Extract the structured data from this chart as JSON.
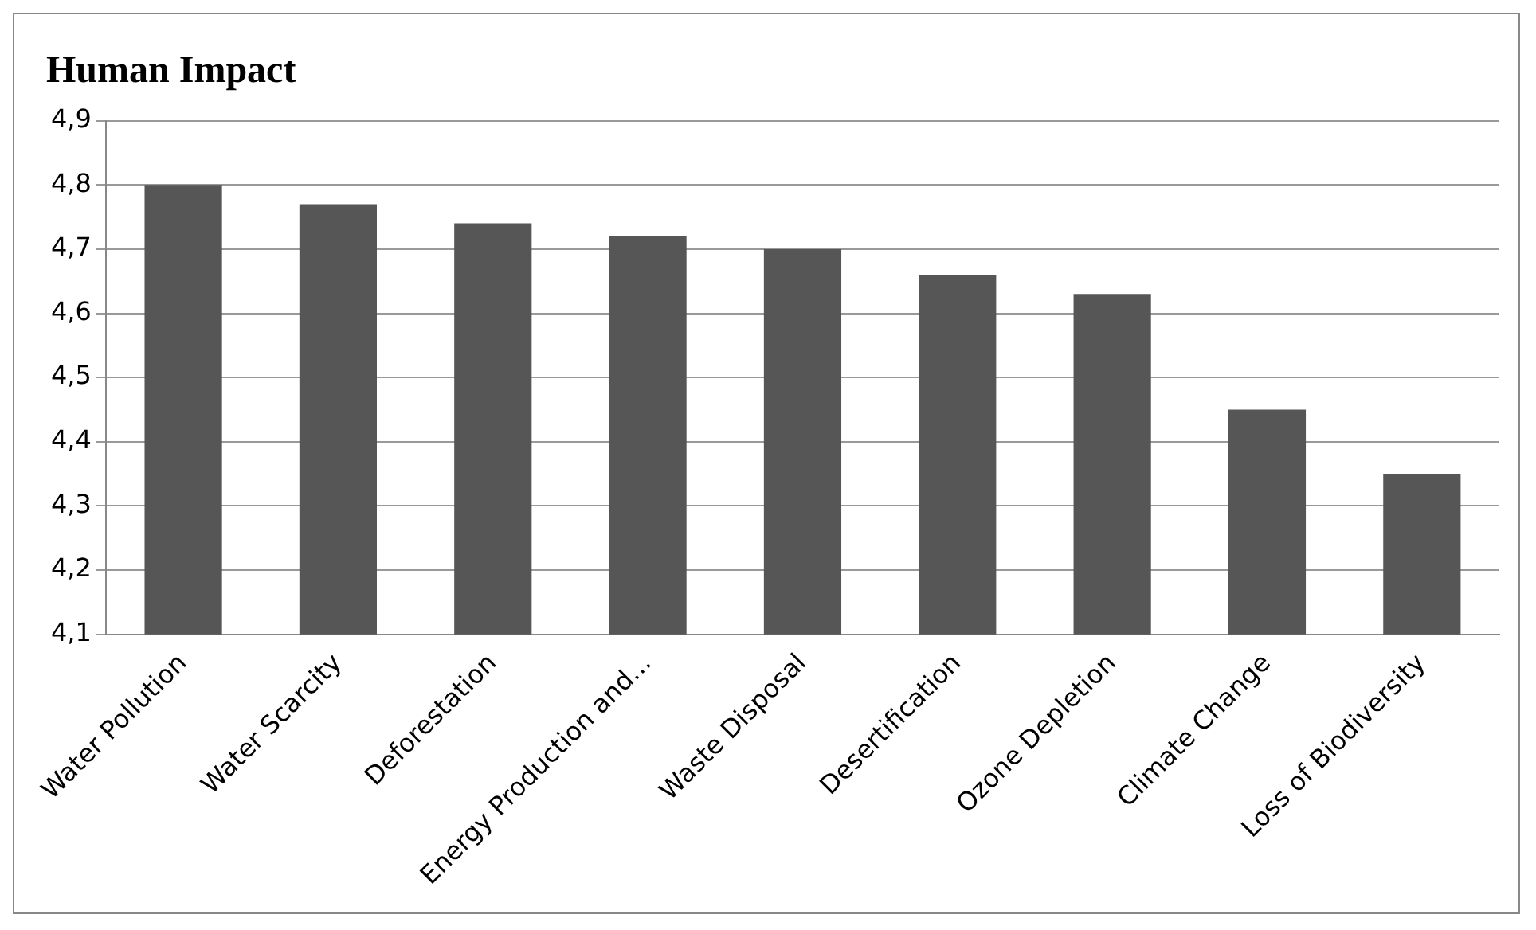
{
  "chart_data": {
    "type": "bar",
    "title": "Human Impact",
    "categories": [
      "Water Pollution",
      "Water Scarcity",
      "Deforestation",
      "Energy Production and...",
      "Waste Disposal",
      "Desertification",
      "Ozone Depletion",
      "Climate Change",
      "Loss of Biodiversity"
    ],
    "values": [
      4.8,
      4.77,
      4.74,
      4.72,
      4.7,
      4.66,
      4.63,
      4.45,
      4.35
    ],
    "color": "#565656",
    "ylim": [
      4.1,
      4.9
    ],
    "yticks": [
      {
        "value": 4.1,
        "label": "4,1"
      },
      {
        "value": 4.2,
        "label": "4,2"
      },
      {
        "value": 4.3,
        "label": "4,3"
      },
      {
        "value": 4.4,
        "label": "4,4"
      },
      {
        "value": 4.5,
        "label": "4,5"
      },
      {
        "value": 4.6,
        "label": "4,6"
      },
      {
        "value": 4.7,
        "label": "4,7"
      },
      {
        "value": 4.8,
        "label": "4,8"
      },
      {
        "value": 4.9,
        "label": "4,9"
      }
    ],
    "grid": "y",
    "legend": false
  }
}
